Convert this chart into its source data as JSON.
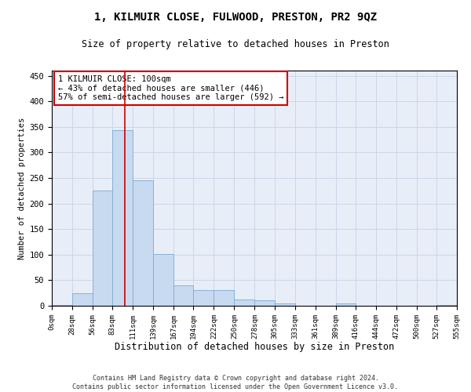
{
  "title1": "1, KILMUIR CLOSE, FULWOOD, PRESTON, PR2 9QZ",
  "title2": "Size of property relative to detached houses in Preston",
  "xlabel": "Distribution of detached houses by size in Preston",
  "ylabel": "Number of detached properties",
  "bar_color": "#c8daf0",
  "bar_edge_color": "#7aaad4",
  "vline_color": "#cc0000",
  "vline_position": 100,
  "annotation_line1": "1 KILMUIR CLOSE: 100sqm",
  "annotation_line2": "← 43% of detached houses are smaller (446)",
  "annotation_line3": "57% of semi-detached houses are larger (592) →",
  "annotation_box_color": "#ffffff",
  "annotation_box_edge_color": "#cc0000",
  "footer1": "Contains HM Land Registry data © Crown copyright and database right 2024.",
  "footer2": "Contains public sector information licensed under the Open Government Licence v3.0.",
  "bin_edges": [
    0,
    28,
    56,
    83,
    111,
    139,
    167,
    194,
    222,
    250,
    278,
    305,
    333,
    361,
    389,
    416,
    444,
    472,
    500,
    527,
    555
  ],
  "bin_counts": [
    1,
    25,
    226,
    344,
    246,
    101,
    40,
    30,
    30,
    13,
    10,
    5,
    0,
    0,
    5,
    0,
    0,
    0,
    0,
    1
  ],
  "ylim": [
    0,
    460
  ],
  "xlim": [
    0,
    555
  ],
  "yticks": [
    0,
    50,
    100,
    150,
    200,
    250,
    300,
    350,
    400,
    450
  ],
  "grid_color": "#ccd6e8",
  "background_color": "#e8eef8"
}
